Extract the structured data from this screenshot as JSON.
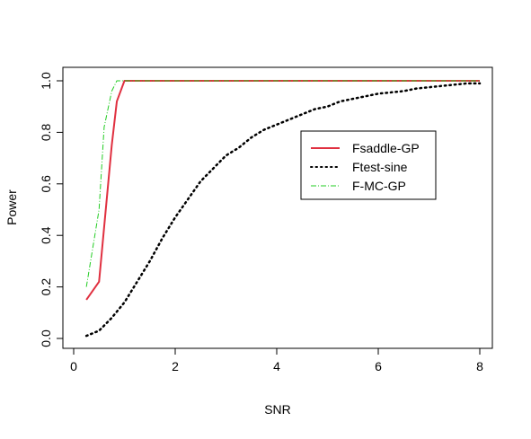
{
  "chart_data": {
    "type": "line",
    "title": "",
    "xlabel": "SNR",
    "ylabel": "Power",
    "xlim": [
      0,
      8
    ],
    "ylim": [
      0,
      1
    ],
    "x_ticks": [
      0,
      2,
      4,
      6,
      8
    ],
    "y_ticks": [
      0.0,
      0.2,
      0.4,
      0.6,
      0.8,
      1.0
    ],
    "x_tick_labels": [
      "0",
      "2",
      "4",
      "6",
      "8"
    ],
    "y_tick_labels": [
      "0.0",
      "0.2",
      "0.4",
      "0.6",
      "0.8",
      "1.0"
    ],
    "grid": false,
    "legend_position": "center-right",
    "series": [
      {
        "name": "Fsaddle-GP",
        "color": "#e03040",
        "line_style": "solid",
        "x": [
          0.25,
          0.5,
          0.75,
          0.85,
          1.0,
          1.25,
          1.5,
          2,
          3,
          4,
          5,
          6,
          7,
          8
        ],
        "y": [
          0.15,
          0.22,
          0.75,
          0.92,
          1.0,
          1.0,
          1.0,
          1.0,
          1.0,
          1.0,
          1.0,
          1.0,
          1.0,
          1.0
        ]
      },
      {
        "name": "Ftest-sine",
        "color": "#000000",
        "line_style": "dotted",
        "x": [
          0.25,
          0.5,
          0.75,
          1.0,
          1.25,
          1.5,
          1.75,
          2.0,
          2.25,
          2.5,
          2.75,
          3.0,
          3.25,
          3.5,
          3.75,
          4.0,
          4.25,
          4.5,
          4.75,
          5.0,
          5.25,
          5.5,
          5.75,
          6.0,
          6.25,
          6.5,
          6.75,
          7.0,
          7.25,
          7.5,
          7.75,
          8.0
        ],
        "y": [
          0.01,
          0.03,
          0.08,
          0.14,
          0.22,
          0.3,
          0.39,
          0.47,
          0.54,
          0.61,
          0.66,
          0.71,
          0.74,
          0.78,
          0.81,
          0.83,
          0.85,
          0.87,
          0.89,
          0.9,
          0.92,
          0.93,
          0.94,
          0.95,
          0.955,
          0.96,
          0.97,
          0.975,
          0.98,
          0.985,
          0.99,
          0.99
        ]
      },
      {
        "name": "F-MC-GP",
        "color": "#22cc22",
        "line_style": "dashdot",
        "x": [
          0.25,
          0.5,
          0.6,
          0.75,
          0.85,
          1.0,
          1.25,
          1.5,
          2,
          3,
          4,
          5,
          6,
          7,
          8
        ],
        "y": [
          0.2,
          0.5,
          0.82,
          0.96,
          1.0,
          1.0,
          1.0,
          1.0,
          1.0,
          1.0,
          1.0,
          1.0,
          1.0,
          1.0,
          1.0
        ]
      }
    ]
  }
}
